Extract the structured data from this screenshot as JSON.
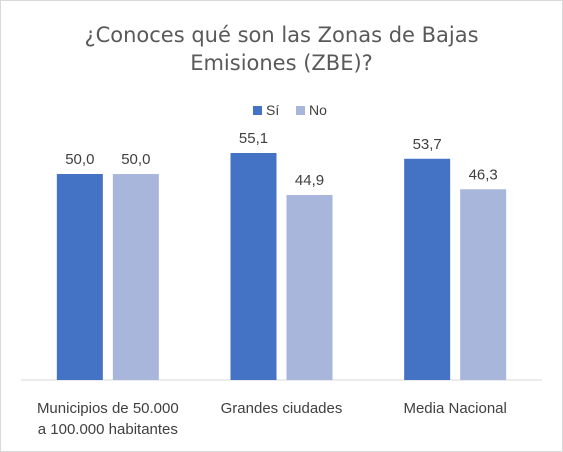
{
  "chart_data": {
    "type": "bar",
    "title_lines": [
      "¿Conoces qué son las Zonas de Bajas",
      "Emisiones (ZBE)?"
    ],
    "categories": [
      [
        "Municipios de 50.000",
        "a 100.000 habitantes"
      ],
      [
        "Grandes ciudades"
      ],
      [
        "Media Nacional"
      ]
    ],
    "series": [
      {
        "name": "Sí",
        "color": "#4472c4",
        "values": [
          50.0,
          55.1,
          53.7
        ],
        "labels": [
          "50,0",
          "55,1",
          "53,7"
        ]
      },
      {
        "name": "No",
        "color": "#a9b6dc",
        "values": [
          50.0,
          44.9,
          46.3
        ],
        "labels": [
          "50,0",
          "44,9",
          "46,3"
        ]
      }
    ],
    "ylim": [
      0,
      60
    ],
    "legend_position": "top",
    "grid": false,
    "axis_color": "#d9d9d9",
    "label_color": "#404040",
    "title_color": "#595959"
  }
}
